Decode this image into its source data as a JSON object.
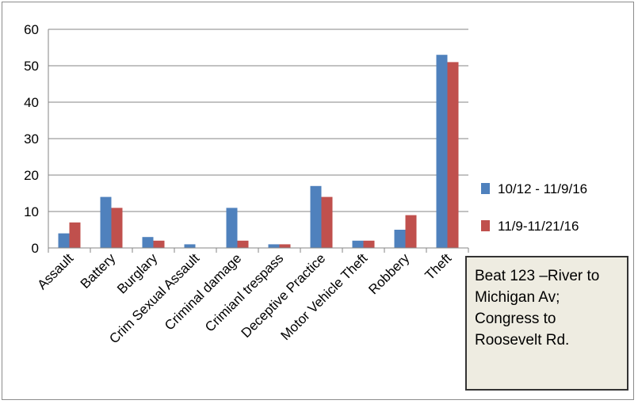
{
  "chart_data": {
    "type": "bar",
    "title": "",
    "xlabel": "",
    "ylabel": "",
    "ylim": [
      0,
      60
    ],
    "yticks": [
      "0",
      "10",
      "20",
      "30",
      "40",
      "50",
      "60"
    ],
    "grid": true,
    "legend_position": "right",
    "categories": [
      "Assault",
      "Battery",
      "Burglary",
      "Crim Sexual Assault",
      "Criminal damage",
      "Crimianl trespass",
      "Deceptive Practice",
      "Motor Vehicle Theft",
      "Robbery",
      "Theft"
    ],
    "series": [
      {
        "name": "10/12 - 11/9/16",
        "color": "#4f81bd",
        "values": [
          4,
          14,
          3,
          1,
          11,
          1,
          17,
          2,
          5,
          53
        ]
      },
      {
        "name": "11/9-11/21/16",
        "color": "#c0504d",
        "values": [
          7,
          11,
          2,
          0,
          2,
          1,
          14,
          2,
          9,
          51
        ]
      }
    ],
    "annotation": "Beat 123 –River to Michigan Av; Congress to Roosevelt Rd."
  }
}
